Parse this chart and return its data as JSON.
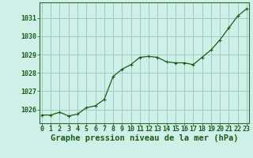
{
  "x": [
    0,
    1,
    2,
    3,
    4,
    5,
    6,
    7,
    8,
    9,
    10,
    11,
    12,
    13,
    14,
    15,
    16,
    17,
    18,
    19,
    20,
    21,
    22,
    23
  ],
  "y": [
    1025.7,
    1025.7,
    1025.85,
    1025.65,
    1025.75,
    1026.1,
    1026.2,
    1026.55,
    1027.8,
    1028.2,
    1028.45,
    1028.85,
    1028.9,
    1028.85,
    1028.6,
    1028.55,
    1028.55,
    1028.45,
    1028.85,
    1029.25,
    1029.8,
    1030.45,
    1031.1,
    1031.5
  ],
  "ylim": [
    1025.25,
    1031.85
  ],
  "yticks": [
    1026,
    1027,
    1028,
    1029,
    1030,
    1031
  ],
  "xlim": [
    -0.3,
    23.3
  ],
  "xticks": [
    0,
    1,
    2,
    3,
    4,
    5,
    6,
    7,
    8,
    9,
    10,
    11,
    12,
    13,
    14,
    15,
    16,
    17,
    18,
    19,
    20,
    21,
    22,
    23
  ],
  "xlabel": "Graphe pression niveau de la mer (hPa)",
  "line_color": "#1a5c1a",
  "marker": "+",
  "bg_color": "#cef0e8",
  "grid_color": "#a0ccc0",
  "axis_color": "#336633",
  "label_color": "#1a5c1a",
  "xlabel_fontsize": 7.5,
  "tick_fontsize": 6.0
}
